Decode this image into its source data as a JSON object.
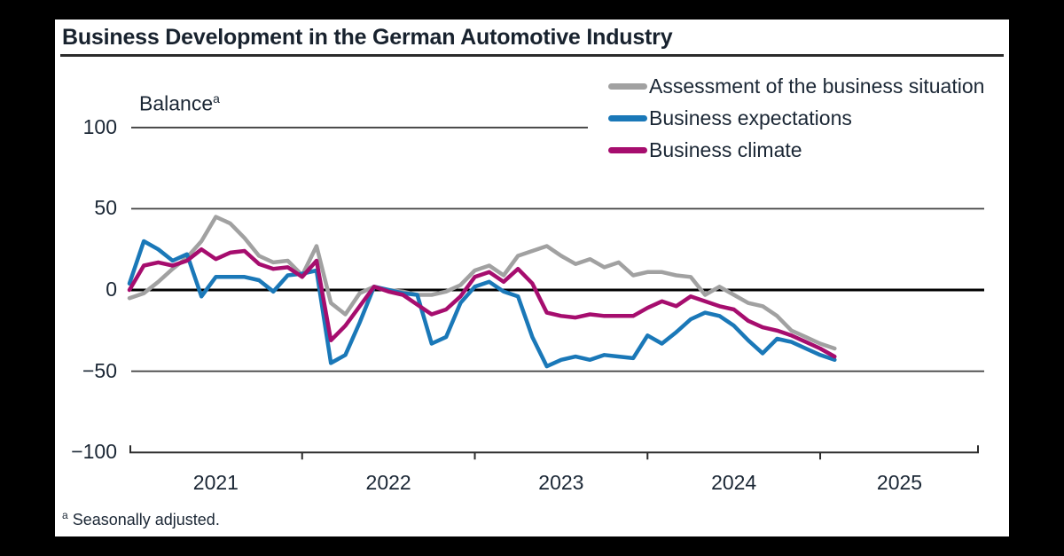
{
  "title": "Business Development in the German Automotive Industry",
  "balance_label": {
    "text": "Balance",
    "sup": "a"
  },
  "footnote": {
    "sup": "a",
    "text": "Seasonally adjusted."
  },
  "colors": {
    "frame": "#000000",
    "panel": "#ffffff",
    "text": "#1b2735",
    "zero_line": "#000000",
    "gridline": "#3f3f3f",
    "axis": "#2b2b2b"
  },
  "chart_data": {
    "type": "line",
    "title": "Business Development in the German Automotive Industry",
    "unit_label": "Balance",
    "unit_label_sup": "a",
    "frequency": "monthly",
    "ylim": [
      -100,
      100
    ],
    "grid": "horizontal",
    "legend_position": "top-right",
    "y_ticks": [
      {
        "label": "100",
        "value": 100
      },
      {
        "label": "50",
        "value": 50
      },
      {
        "label": "0",
        "value": 0
      },
      {
        "label": "−50",
        "value": -50
      },
      {
        "label": "−100",
        "value": -100
      }
    ],
    "x_tick_labels": [
      "2021",
      "2022",
      "2023",
      "2024",
      "2025"
    ],
    "x": [
      "2021-01",
      "2021-02",
      "2021-03",
      "2021-04",
      "2021-05",
      "2021-06",
      "2021-07",
      "2021-08",
      "2021-09",
      "2021-10",
      "2021-11",
      "2021-12",
      "2022-01",
      "2022-02",
      "2022-03",
      "2022-04",
      "2022-05",
      "2022-06",
      "2022-07",
      "2022-08",
      "2022-09",
      "2022-10",
      "2022-11",
      "2022-12",
      "2023-01",
      "2023-02",
      "2023-03",
      "2023-04",
      "2023-05",
      "2023-06",
      "2023-07",
      "2023-08",
      "2023-09",
      "2023-10",
      "2023-11",
      "2023-12",
      "2024-01",
      "2024-02",
      "2024-03",
      "2024-04",
      "2024-05",
      "2024-06",
      "2024-07",
      "2024-08",
      "2024-09",
      "2024-10",
      "2024-11",
      "2024-12",
      "2025-01",
      "2025-02"
    ],
    "series": [
      {
        "name": "Assessment of the business situation",
        "color": "#a1a1a1",
        "values": [
          -5,
          -2,
          5,
          13,
          20,
          30,
          45,
          41,
          32,
          21,
          17,
          18,
          9,
          27,
          -8,
          -15,
          -2,
          2,
          0,
          -1,
          -3,
          -3,
          -1,
          3,
          12,
          15,
          9,
          21,
          24,
          27,
          21,
          16,
          19,
          14,
          17,
          9,
          11,
          11,
          9,
          8,
          -3,
          2,
          -3,
          -8,
          -10,
          -16,
          -25,
          -29,
          -33,
          -36
        ]
      },
      {
        "name": "Business expectations",
        "color": "#1a78b8",
        "values": [
          4,
          30,
          25,
          18,
          22,
          -4,
          8,
          8,
          8,
          6,
          -1,
          9,
          10,
          12,
          -45,
          -40,
          -20,
          2,
          0,
          -2,
          -3,
          -33,
          -29,
          -8,
          2,
          5,
          -1,
          -4,
          -29,
          -47,
          -43,
          -41,
          -43,
          -40,
          -41,
          -42,
          -28,
          -33,
          -26,
          -18,
          -14,
          -16,
          -22,
          -31,
          -39,
          -30,
          -32,
          -36,
          -40,
          -43
        ]
      },
      {
        "name": "Business climate",
        "color": "#a60d6e",
        "values": [
          0,
          15,
          17,
          15,
          18,
          25,
          19,
          23,
          24,
          16,
          13,
          14,
          8,
          18,
          -31,
          -22,
          -10,
          2,
          -1,
          -3,
          -9,
          -15,
          -12,
          -4,
          8,
          11,
          5,
          13,
          4,
          -14,
          -16,
          -17,
          -15,
          -16,
          -16,
          -16,
          -11,
          -7,
          -10,
          -4,
          -7,
          -10,
          -12,
          -19,
          -23,
          -25,
          -28,
          -32,
          -36,
          -41
        ]
      }
    ]
  }
}
